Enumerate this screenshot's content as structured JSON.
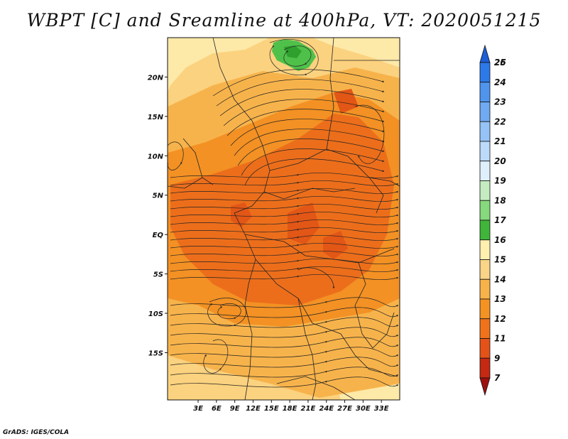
{
  "title": "WBPT [C] and Sreamline at 400hPa, VT: 2020051215",
  "footer": "GrADS: IGES/COLA",
  "map": {
    "lon_range": [
      -2,
      36
    ],
    "lat_range": [
      -21,
      25
    ],
    "lon_ticks": [
      "3E",
      "6E",
      "9E",
      "12E",
      "15E",
      "18E",
      "21E",
      "24E",
      "27E",
      "30E",
      "33E"
    ],
    "lat_ticks": [
      "20N",
      "15N",
      "10N",
      "5N",
      "EQ",
      "5S",
      "10S",
      "15S"
    ]
  },
  "colorbar": {
    "levels": [
      "7",
      "9",
      "11",
      "12",
      "13",
      "14",
      "15",
      "16",
      "17",
      "18",
      "19",
      "20",
      "21",
      "22",
      "23",
      "24",
      "25",
      "26"
    ],
    "colors": [
      "#1e5fd8",
      "#2c7ae8",
      "#4f95ee",
      "#6faaf2",
      "#96c3f7",
      "#bcdaf9",
      "#dff0fb",
      "#c5ecc0",
      "#86d97c",
      "#3fb53a",
      "#fff0b0",
      "#fad487",
      "#f7b24a",
      "#f59322",
      "#f0731a",
      "#e45218",
      "#c52912",
      "#9e0e0e"
    ]
  },
  "fill_colors": {
    "c19": "#fde9a8",
    "c20": "#fbd27f",
    "c21": "#f7b34b",
    "c22": "#f39124",
    "c23": "#ec6e1b",
    "c24": "#e25616",
    "green": "#4fc14a",
    "green_dark": "#2f9f2e",
    "streamline": "#222222",
    "border": "#222222"
  }
}
